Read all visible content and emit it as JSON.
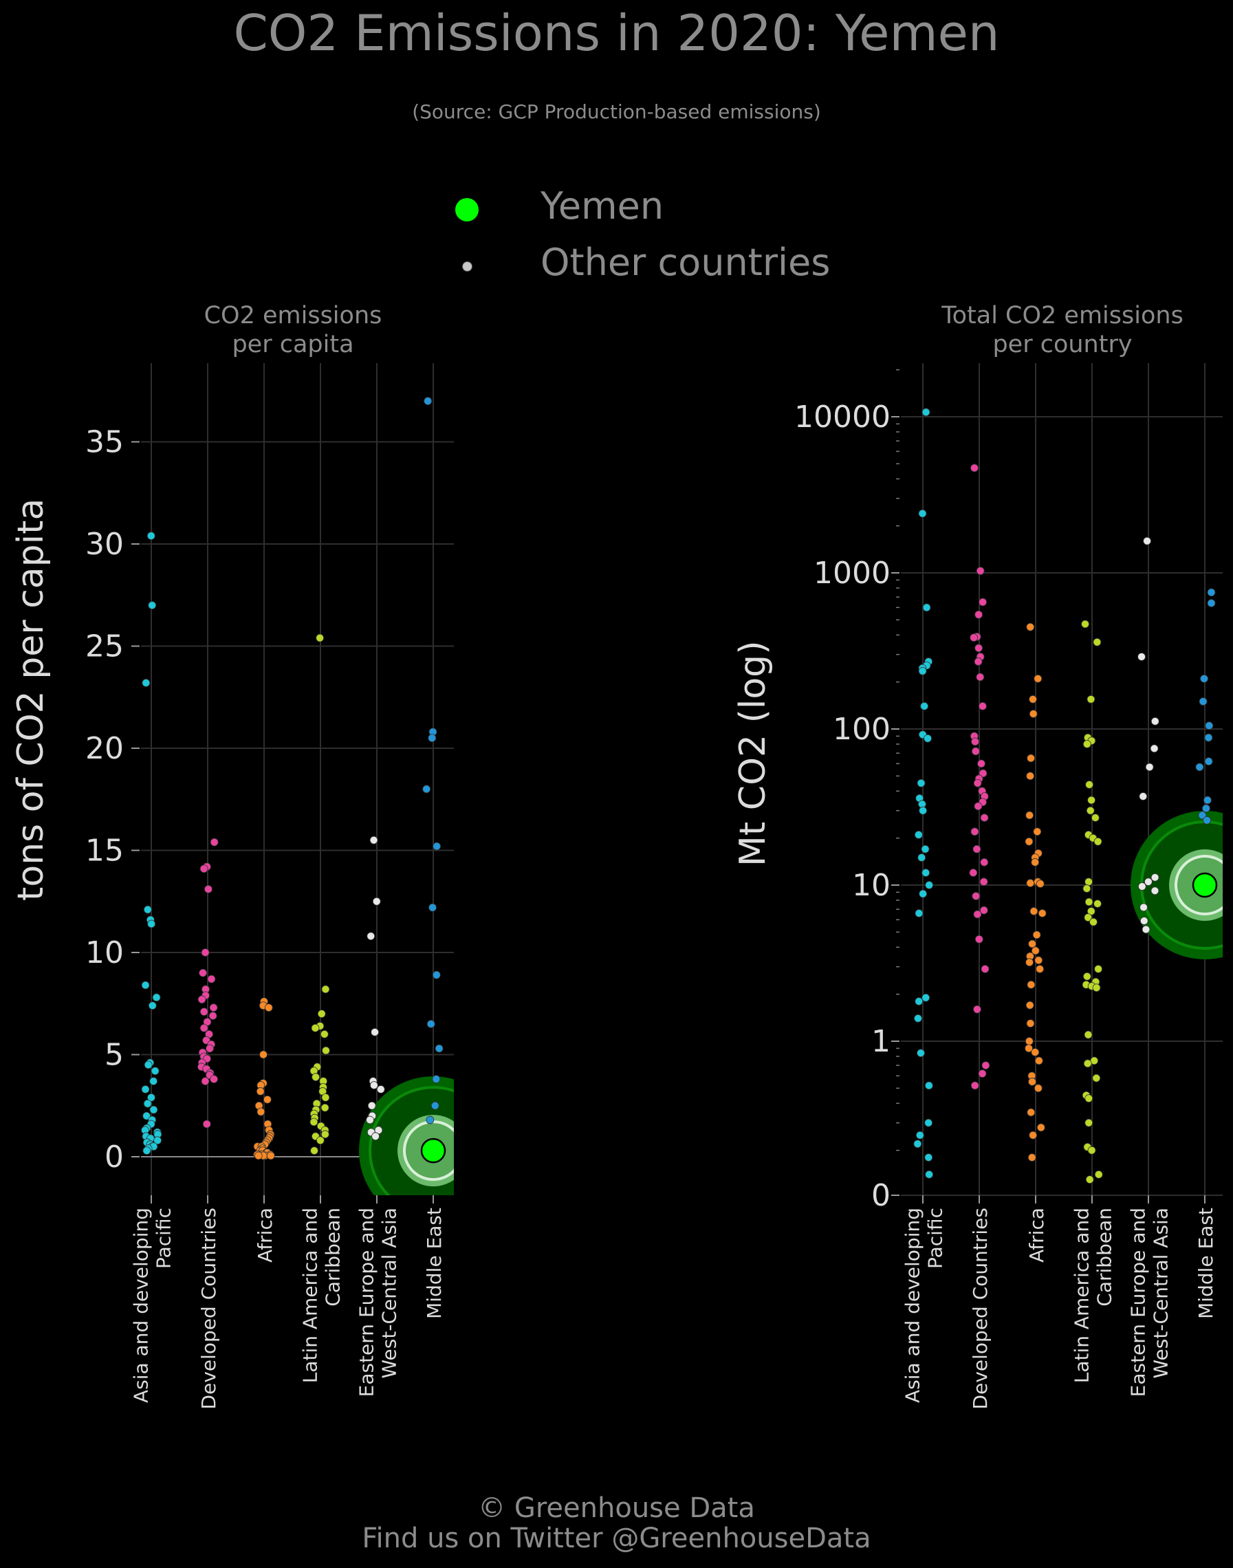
{
  "title": "CO2 Emissions in 2020: Yemen",
  "subtitle": "(Source: GCP Production-based emissions)",
  "legend": {
    "highlight_label": "Yemen",
    "other_label": "Other countries",
    "highlight_color": "#00ff00",
    "other_color": "#c8c8c8"
  },
  "footer": {
    "line1": "© Greenhouse Data",
    "line2": "Find us on Twitter @GreenhouseData"
  },
  "colors": {
    "Asia and developing Pacific": "#1ec8d8",
    "Developed Countries": "#e8449e",
    "Africa": "#f58a28",
    "Latin America and Caribbean": "#bcd828",
    "Eastern Europe and West-Central Asia": "#e8e8e8",
    "Middle East": "#2496d8",
    "highlight": "#00ff00",
    "halo_outer": "#006400",
    "halo_inner": "#7fcf7f"
  },
  "chart_data": [
    {
      "type": "scatter",
      "title": "CO2 emissions\nper capita",
      "ylabel": "tons of CO2 per capita",
      "xlabel": "",
      "yscale": "linear",
      "ylim": [
        -1.8,
        39
      ],
      "yticks": [
        0,
        5,
        10,
        15,
        20,
        25,
        30,
        35
      ],
      "ytick_labels": [
        "0",
        "5",
        "10",
        "15",
        "20",
        "25",
        "30",
        "35"
      ],
      "grid": true,
      "categories": [
        "Asia and developing Pacific",
        "Developed Countries",
        "Africa",
        "Latin America and Caribbean",
        "Eastern Europe and West-Central Asia",
        "Middle East"
      ],
      "category_labels": [
        [
          "Asia and developing",
          "Pacific"
        ],
        [
          "Developed Countries"
        ],
        [
          "Africa"
        ],
        [
          "Latin America and",
          "Caribbean"
        ],
        [
          "Eastern Europe and",
          "West-Central Asia"
        ],
        [
          "Middle East"
        ]
      ],
      "highlight": {
        "label": "Yemen",
        "category": "Middle East",
        "value": 0.3
      },
      "series": [
        {
          "name": "Asia and developing Pacific",
          "values": [
            30.4,
            27.0,
            23.2,
            12.1,
            11.6,
            11.4,
            8.4,
            7.8,
            7.4,
            4.6,
            4.5,
            4.2,
            3.7,
            3.3,
            2.9,
            2.6,
            2.3,
            2.0,
            1.8,
            1.6,
            1.4,
            1.3,
            1.2,
            1.1,
            1.0,
            0.9,
            0.8,
            0.7,
            0.6,
            0.5,
            0.5,
            0.4,
            0.3
          ]
        },
        {
          "name": "Developed Countries",
          "values": [
            15.4,
            14.2,
            14.1,
            13.1,
            10.0,
            9.0,
            8.7,
            8.2,
            7.9,
            7.7,
            7.3,
            7.1,
            6.9,
            6.6,
            6.3,
            6.0,
            5.7,
            5.5,
            5.3,
            5.1,
            4.9,
            4.8,
            4.6,
            4.4,
            4.3,
            4.1,
            4.0,
            3.8,
            3.7,
            1.6
          ]
        },
        {
          "name": "Africa",
          "values": [
            7.6,
            7.4,
            7.3,
            5.0,
            3.6,
            3.5,
            3.2,
            2.8,
            2.5,
            2.2,
            1.6,
            1.3,
            1.1,
            1.0,
            0.9,
            0.8,
            0.7,
            0.6,
            0.5,
            0.5,
            0.4,
            0.3,
            0.3,
            0.2,
            0.2,
            0.1,
            0.1,
            0.1,
            0.1,
            0.05,
            0.05,
            0.05,
            0.05
          ]
        },
        {
          "name": "Latin America and Caribbean",
          "values": [
            25.4,
            8.2,
            7.0,
            6.4,
            6.3,
            6.0,
            5.2,
            4.4,
            4.2,
            3.9,
            3.7,
            3.4,
            3.2,
            2.9,
            2.6,
            2.4,
            2.3,
            2.1,
            1.9,
            1.7,
            1.5,
            1.3,
            1.1,
            1.0,
            0.8,
            0.3
          ]
        },
        {
          "name": "Eastern Europe and West-Central Asia",
          "values": [
            15.5,
            12.5,
            10.8,
            6.1,
            3.7,
            3.5,
            3.3,
            2.5,
            2.0,
            1.8,
            1.3,
            1.2,
            1.0
          ]
        },
        {
          "name": "Middle East",
          "values": [
            37.0,
            20.8,
            20.5,
            18.0,
            15.2,
            12.2,
            8.9,
            6.5,
            5.3,
            3.8,
            2.5,
            1.8
          ]
        }
      ]
    },
    {
      "type": "scatter",
      "title": "Total CO2 emissions\nper country",
      "ylabel": "Mt CO2 (log)",
      "xlabel": "",
      "yscale": "log",
      "ylim": [
        0,
        21000
      ],
      "yticks": [
        0,
        1,
        10,
        100,
        1000,
        10000
      ],
      "ytick_labels": [
        "0",
        "1",
        "10",
        "100",
        "1000",
        "10000"
      ],
      "grid": true,
      "categories": [
        "Asia and developing Pacific",
        "Developed Countries",
        "Africa",
        "Latin America and Caribbean",
        "Eastern Europe and West-Central Asia",
        "Middle East"
      ],
      "category_labels": [
        [
          "Asia and developing",
          "Pacific"
        ],
        [
          "Developed Countries"
        ],
        [
          "Africa"
        ],
        [
          "Latin America and",
          "Caribbean"
        ],
        [
          "Eastern Europe and",
          "West-Central Asia"
        ],
        [
          "Middle East"
        ]
      ],
      "highlight": {
        "label": "Yemen",
        "category": "Middle East",
        "value": 10
      },
      "series": [
        {
          "name": "Asia and developing Pacific",
          "values": [
            10700,
            2400,
            600,
            270,
            255,
            245,
            235,
            140,
            92,
            87,
            45,
            36,
            33,
            30,
            21,
            17,
            15,
            12,
            10,
            8.8,
            6.6,
            1.9,
            1.8,
            1.4,
            0.84,
            0.52,
            0.3,
            0.25,
            0.22,
            0.18,
            0.14
          ]
        },
        {
          "name": "Developed Countries",
          "values": [
            4700,
            1030,
            650,
            540,
            390,
            385,
            330,
            290,
            270,
            215,
            140,
            90,
            83,
            72,
            60,
            52,
            48,
            45,
            40,
            37,
            34,
            32,
            27,
            22,
            17,
            14,
            12,
            10.5,
            8.5,
            6.9,
            6.5,
            4.5,
            2.9,
            1.6,
            0.7,
            0.62,
            0.52
          ]
        },
        {
          "name": "Africa",
          "values": [
            450,
            210,
            155,
            125,
            65,
            50,
            28,
            22,
            19,
            16,
            15,
            14,
            10.5,
            10.3,
            10.2,
            6.8,
            6.6,
            4.8,
            4.2,
            3.8,
            3.5,
            3.3,
            3.2,
            2.9,
            2.3,
            1.7,
            1.3,
            1.0,
            0.9,
            0.85,
            0.75,
            0.6,
            0.55,
            0.5,
            0.35,
            0.28,
            0.25,
            0.18,
            0.06
          ]
        },
        {
          "name": "Latin America and Caribbean",
          "values": [
            470,
            360,
            155,
            88,
            84,
            80,
            44,
            35,
            30,
            27,
            21,
            20,
            19,
            10.5,
            9.5,
            7.8,
            7.6,
            6.8,
            6.2,
            5.8,
            2.9,
            2.6,
            2.4,
            2.3,
            2.25,
            2.2,
            1.1,
            0.75,
            0.72,
            0.58,
            0.45,
            0.43,
            0.3,
            0.21,
            0.2,
            0.14,
            0.13,
            0.09
          ]
        },
        {
          "name": "Eastern Europe and West-Central Asia",
          "values": [
            1600,
            290,
            112,
            75,
            57,
            37,
            11.2,
            10.5,
            9.8,
            9.2,
            7.2,
            5.9,
            5.2
          ]
        },
        {
          "name": "Middle East",
          "values": [
            750,
            640,
            210,
            150,
            105,
            88,
            62,
            57,
            35,
            31,
            28,
            26
          ]
        }
      ]
    }
  ]
}
